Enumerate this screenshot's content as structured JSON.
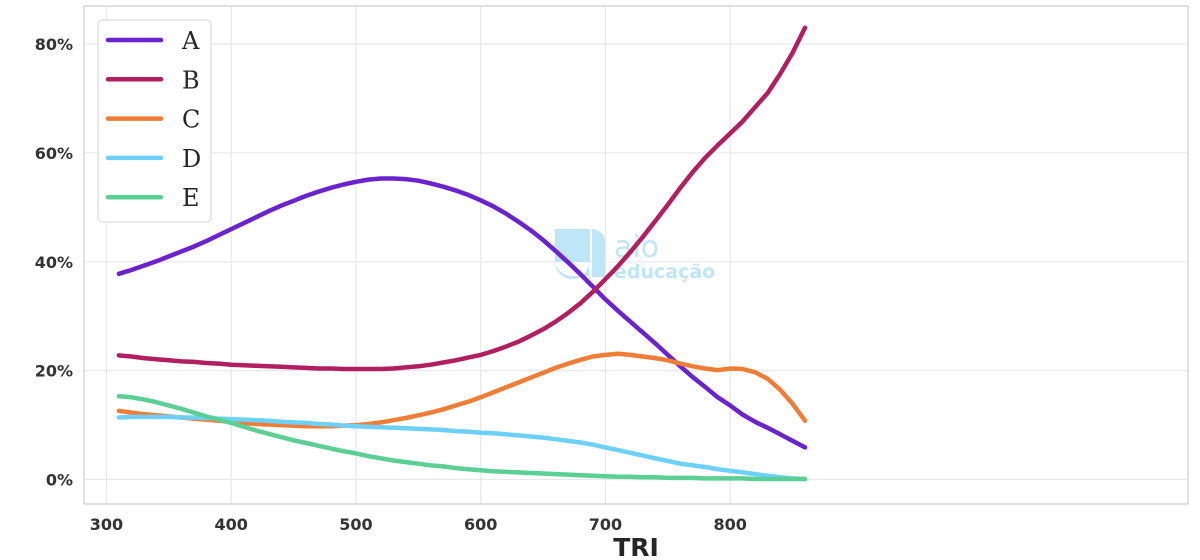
{
  "chart_data": {
    "type": "line",
    "title": "",
    "xlabel": "TRI",
    "ylabel": "",
    "xlim": [
      282,
      1167
    ],
    "ylim": [
      -0.045,
      0.87
    ],
    "xticks": [
      300,
      400,
      500,
      600,
      700,
      800
    ],
    "xtick_labels": [
      "300",
      "400",
      "500",
      "600",
      "700",
      "800"
    ],
    "yticks": [
      0,
      0.2,
      0.4,
      0.6,
      0.8
    ],
    "ytick_labels": [
      "0%",
      "20%",
      "40%",
      "60%",
      "80%"
    ],
    "grid": true,
    "legend_position": "top-left",
    "x": [
      310,
      320,
      330,
      340,
      350,
      360,
      370,
      380,
      390,
      400,
      410,
      420,
      430,
      440,
      450,
      460,
      470,
      480,
      490,
      500,
      510,
      520,
      530,
      540,
      550,
      560,
      570,
      580,
      590,
      600,
      610,
      620,
      630,
      640,
      650,
      660,
      670,
      680,
      690,
      700,
      710,
      720,
      730,
      740,
      750,
      760,
      770,
      780,
      790,
      800,
      810,
      820,
      830,
      840,
      850,
      860
    ],
    "series": [
      {
        "name": "A",
        "color": "#6b23cf",
        "values": [
          0.378,
          0.385,
          0.393,
          0.401,
          0.41,
          0.419,
          0.428,
          0.438,
          0.449,
          0.46,
          0.471,
          0.482,
          0.493,
          0.503,
          0.512,
          0.521,
          0.529,
          0.536,
          0.542,
          0.547,
          0.551,
          0.553,
          0.553,
          0.552,
          0.549,
          0.544,
          0.538,
          0.531,
          0.523,
          0.513,
          0.502,
          0.489,
          0.474,
          0.458,
          0.44,
          0.42,
          0.399,
          0.377,
          0.354,
          0.331,
          0.31,
          0.29,
          0.27,
          0.25,
          0.229,
          0.208,
          0.188,
          0.17,
          0.151,
          0.136,
          0.119,
          0.106,
          0.095,
          0.083,
          0.071,
          0.059
        ]
      },
      {
        "name": "B",
        "color": "#b11f61",
        "values": [
          0.228,
          0.226,
          0.223,
          0.221,
          0.219,
          0.217,
          0.216,
          0.214,
          0.213,
          0.211,
          0.21,
          0.209,
          0.208,
          0.207,
          0.206,
          0.205,
          0.204,
          0.204,
          0.203,
          0.203,
          0.203,
          0.203,
          0.204,
          0.206,
          0.208,
          0.211,
          0.215,
          0.219,
          0.224,
          0.229,
          0.236,
          0.244,
          0.253,
          0.264,
          0.276,
          0.29,
          0.306,
          0.324,
          0.345,
          0.368,
          0.392,
          0.418,
          0.446,
          0.475,
          0.505,
          0.536,
          0.565,
          0.591,
          0.614,
          0.636,
          0.658,
          0.684,
          0.71,
          0.745,
          0.784,
          0.83
        ]
      },
      {
        "name": "C",
        "color": "#f07d36",
        "values": [
          0.126,
          0.123,
          0.12,
          0.118,
          0.116,
          0.114,
          0.112,
          0.11,
          0.108,
          0.106,
          0.104,
          0.102,
          0.101,
          0.1,
          0.099,
          0.098,
          0.098,
          0.098,
          0.099,
          0.1,
          0.102,
          0.105,
          0.109,
          0.113,
          0.118,
          0.123,
          0.129,
          0.136,
          0.143,
          0.151,
          0.16,
          0.169,
          0.178,
          0.187,
          0.196,
          0.205,
          0.213,
          0.22,
          0.226,
          0.229,
          0.231,
          0.229,
          0.226,
          0.223,
          0.219,
          0.213,
          0.208,
          0.204,
          0.201,
          0.204,
          0.203,
          0.197,
          0.185,
          0.165,
          0.139,
          0.108
        ]
      },
      {
        "name": "D",
        "color": "#6dd0f9",
        "values": [
          0.114,
          0.115,
          0.115,
          0.115,
          0.115,
          0.114,
          0.114,
          0.113,
          0.112,
          0.111,
          0.11,
          0.109,
          0.108,
          0.106,
          0.105,
          0.104,
          0.102,
          0.101,
          0.099,
          0.098,
          0.097,
          0.096,
          0.095,
          0.094,
          0.093,
          0.092,
          0.091,
          0.089,
          0.088,
          0.086,
          0.085,
          0.083,
          0.081,
          0.079,
          0.077,
          0.074,
          0.071,
          0.068,
          0.064,
          0.059,
          0.054,
          0.049,
          0.044,
          0.039,
          0.034,
          0.029,
          0.026,
          0.023,
          0.019,
          0.016,
          0.013,
          0.01,
          0.007,
          0.004,
          0.002,
          0.001
        ]
      },
      {
        "name": "E",
        "color": "#5ccf94",
        "values": [
          0.153,
          0.151,
          0.147,
          0.142,
          0.136,
          0.13,
          0.123,
          0.116,
          0.11,
          0.104,
          0.097,
          0.09,
          0.084,
          0.078,
          0.072,
          0.067,
          0.062,
          0.057,
          0.052,
          0.048,
          0.043,
          0.039,
          0.035,
          0.032,
          0.029,
          0.026,
          0.024,
          0.021,
          0.019,
          0.017,
          0.015,
          0.014,
          0.013,
          0.012,
          0.011,
          0.01,
          0.009,
          0.008,
          0.007,
          0.006,
          0.005,
          0.005,
          0.004,
          0.004,
          0.003,
          0.003,
          0.003,
          0.002,
          0.002,
          0.002,
          0.002,
          0.001,
          0.001,
          0.001,
          0.001,
          0.001
        ]
      }
    ]
  },
  "watermark": {
    "line1": "aio",
    "line2": "educação",
    "color": "#bfe6f7"
  }
}
